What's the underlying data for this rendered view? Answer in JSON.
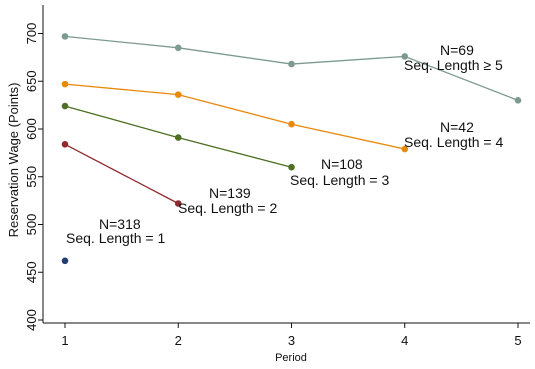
{
  "chart_data": {
    "type": "line",
    "title": "",
    "xlabel": "Period",
    "ylabel": "Reservation Wage (Points)",
    "xlim": [
      1,
      5
    ],
    "ylim": [
      400,
      700
    ],
    "x_ticks": [
      1,
      2,
      3,
      4,
      5
    ],
    "y_ticks": [
      400,
      450,
      500,
      550,
      600,
      650,
      700
    ],
    "grid": false,
    "legend": "none",
    "series": [
      {
        "color": "#1f3f6e",
        "x": [
          1
        ],
        "y": [
          462
        ],
        "annotation": {
          "n_label": "N=318",
          "seq_label": "Seq. Length = 1"
        }
      },
      {
        "color": "#8e2b2f",
        "x": [
          1,
          2
        ],
        "y": [
          584,
          522
        ],
        "annotation": {
          "n_label": "N=139",
          "seq_label": "Seq. Length = 2"
        }
      },
      {
        "color": "#4f7023",
        "x": [
          1,
          2,
          3
        ],
        "y": [
          624,
          591,
          560
        ],
        "annotation": {
          "n_label": "N=108",
          "seq_label": "Seq. Length = 3"
        }
      },
      {
        "color": "#e8890c",
        "x": [
          1,
          2,
          3,
          4
        ],
        "y": [
          647,
          636,
          605,
          579
        ],
        "annotation": {
          "n_label": "N=42",
          "seq_label": "Seq. Length = 4"
        }
      },
      {
        "color": "#7d9a8f",
        "x": [
          1,
          2,
          3,
          4,
          5
        ],
        "y": [
          697,
          685,
          668,
          676,
          630
        ],
        "annotation": {
          "n_label": "N=69",
          "seq_label": "Seq. Length ≥ 5"
        }
      }
    ]
  }
}
